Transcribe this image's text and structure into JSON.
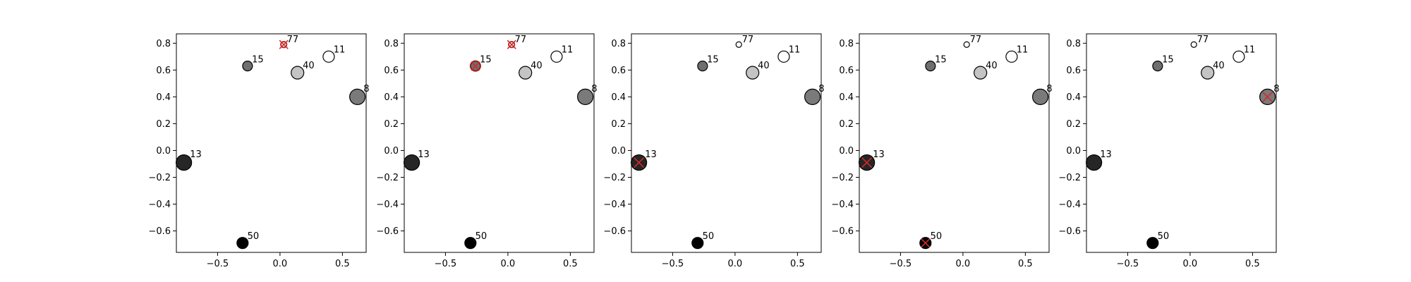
{
  "chart_data": [
    {
      "type": "scatter",
      "xlim": [
        -0.83,
        0.69
      ],
      "ylim": [
        -0.76,
        0.87
      ],
      "x_ticks": [
        -0.5,
        0.0,
        0.5
      ],
      "x_tick_labels": [
        "−0.5",
        "0.0",
        "0.5"
      ],
      "y_ticks": [
        -0.6,
        -0.4,
        -0.2,
        0.0,
        0.2,
        0.4,
        0.6,
        0.8
      ],
      "y_tick_labels": [
        "−0.6",
        "−0.4",
        "−0.2",
        "0.0",
        "0.2",
        "0.4",
        "0.6",
        "0.8"
      ],
      "grid": false,
      "points": [
        {
          "label": "77",
          "x": 0.03,
          "y": 0.79,
          "size": 4,
          "color": "#ffffff",
          "marked": true
        },
        {
          "label": "11",
          "x": 0.39,
          "y": 0.7,
          "size": 8,
          "color": "#ffffff",
          "marked": false
        },
        {
          "label": "15",
          "x": -0.26,
          "y": 0.63,
          "size": 7,
          "color": "#6f6f6f",
          "marked": false
        },
        {
          "label": "40",
          "x": 0.14,
          "y": 0.58,
          "size": 9,
          "color": "#c4c4c4",
          "marked": false
        },
        {
          "label": "8",
          "x": 0.62,
          "y": 0.4,
          "size": 11,
          "color": "#7a7a7a",
          "marked": false
        },
        {
          "label": "13",
          "x": -0.77,
          "y": -0.09,
          "size": 11,
          "color": "#262626",
          "marked": false
        },
        {
          "label": "50",
          "x": -0.3,
          "y": -0.69,
          "size": 8,
          "color": "#000000",
          "marked": false
        }
      ]
    },
    {
      "type": "scatter",
      "xlim": [
        -0.83,
        0.69
      ],
      "ylim": [
        -0.76,
        0.87
      ],
      "x_ticks": [
        -0.5,
        0.0,
        0.5
      ],
      "x_tick_labels": [
        "−0.5",
        "0.0",
        "0.5"
      ],
      "y_ticks": [
        -0.6,
        -0.4,
        -0.2,
        0.0,
        0.2,
        0.4,
        0.6,
        0.8
      ],
      "y_tick_labels": [
        "−0.6",
        "−0.4",
        "−0.2",
        "0.0",
        "0.2",
        "0.4",
        "0.6",
        "0.8"
      ],
      "grid": false,
      "points": [
        {
          "label": "77",
          "x": 0.03,
          "y": 0.79,
          "size": 4,
          "color": "#ffffff",
          "marked": true
        },
        {
          "label": "11",
          "x": 0.39,
          "y": 0.7,
          "size": 8,
          "color": "#ffffff",
          "marked": false
        },
        {
          "label": "15",
          "x": -0.26,
          "y": 0.63,
          "size": 7,
          "color": "#6f6f6f",
          "marked": true
        },
        {
          "label": "40",
          "x": 0.14,
          "y": 0.58,
          "size": 9,
          "color": "#c4c4c4",
          "marked": false
        },
        {
          "label": "8",
          "x": 0.62,
          "y": 0.4,
          "size": 11,
          "color": "#7a7a7a",
          "marked": false
        },
        {
          "label": "13",
          "x": -0.77,
          "y": -0.09,
          "size": 11,
          "color": "#262626",
          "marked": false
        },
        {
          "label": "50",
          "x": -0.3,
          "y": -0.69,
          "size": 8,
          "color": "#000000",
          "marked": false
        }
      ]
    },
    {
      "type": "scatter",
      "xlim": [
        -0.83,
        0.69
      ],
      "ylim": [
        -0.76,
        0.87
      ],
      "x_ticks": [
        -0.5,
        0.0,
        0.5
      ],
      "x_tick_labels": [
        "−0.5",
        "0.0",
        "0.5"
      ],
      "y_ticks": [
        -0.6,
        -0.4,
        -0.2,
        0.0,
        0.2,
        0.4,
        0.6,
        0.8
      ],
      "y_tick_labels": [
        "−0.6",
        "−0.4",
        "−0.2",
        "0.0",
        "0.2",
        "0.4",
        "0.6",
        "0.8"
      ],
      "grid": false,
      "points": [
        {
          "label": "77",
          "x": 0.03,
          "y": 0.79,
          "size": 4,
          "color": "#ffffff",
          "marked": false
        },
        {
          "label": "11",
          "x": 0.39,
          "y": 0.7,
          "size": 8,
          "color": "#ffffff",
          "marked": false
        },
        {
          "label": "15",
          "x": -0.26,
          "y": 0.63,
          "size": 7,
          "color": "#6f6f6f",
          "marked": false
        },
        {
          "label": "40",
          "x": 0.14,
          "y": 0.58,
          "size": 9,
          "color": "#c4c4c4",
          "marked": false
        },
        {
          "label": "8",
          "x": 0.62,
          "y": 0.4,
          "size": 11,
          "color": "#7a7a7a",
          "marked": false
        },
        {
          "label": "13",
          "x": -0.77,
          "y": -0.09,
          "size": 11,
          "color": "#262626",
          "marked": true
        },
        {
          "label": "50",
          "x": -0.3,
          "y": -0.69,
          "size": 8,
          "color": "#000000",
          "marked": false
        }
      ]
    },
    {
      "type": "scatter",
      "xlim": [
        -0.83,
        0.69
      ],
      "ylim": [
        -0.76,
        0.87
      ],
      "x_ticks": [
        -0.5,
        0.0,
        0.5
      ],
      "x_tick_labels": [
        "−0.5",
        "0.0",
        "0.5"
      ],
      "y_ticks": [
        -0.6,
        -0.4,
        -0.2,
        0.0,
        0.2,
        0.4,
        0.6,
        0.8
      ],
      "y_tick_labels": [
        "−0.6",
        "−0.4",
        "−0.2",
        "0.0",
        "0.2",
        "0.4",
        "0.6",
        "0.8"
      ],
      "grid": false,
      "points": [
        {
          "label": "77",
          "x": 0.03,
          "y": 0.79,
          "size": 4,
          "color": "#ffffff",
          "marked": false
        },
        {
          "label": "11",
          "x": 0.39,
          "y": 0.7,
          "size": 8,
          "color": "#ffffff",
          "marked": false
        },
        {
          "label": "15",
          "x": -0.26,
          "y": 0.63,
          "size": 7,
          "color": "#6f6f6f",
          "marked": false
        },
        {
          "label": "40",
          "x": 0.14,
          "y": 0.58,
          "size": 9,
          "color": "#c4c4c4",
          "marked": false
        },
        {
          "label": "8",
          "x": 0.62,
          "y": 0.4,
          "size": 11,
          "color": "#7a7a7a",
          "marked": false
        },
        {
          "label": "13",
          "x": -0.77,
          "y": -0.09,
          "size": 11,
          "color": "#262626",
          "marked": true
        },
        {
          "label": "50",
          "x": -0.3,
          "y": -0.69,
          "size": 8,
          "color": "#000000",
          "marked": true
        }
      ]
    },
    {
      "type": "scatter",
      "xlim": [
        -0.83,
        0.69
      ],
      "ylim": [
        -0.76,
        0.87
      ],
      "x_ticks": [
        -0.5,
        0.0,
        0.5
      ],
      "x_tick_labels": [
        "−0.5",
        "0.0",
        "0.5"
      ],
      "y_ticks": [
        -0.6,
        -0.4,
        -0.2,
        0.0,
        0.2,
        0.4,
        0.6,
        0.8
      ],
      "y_tick_labels": [
        "−0.6",
        "−0.4",
        "−0.2",
        "0.0",
        "0.2",
        "0.4",
        "0.6",
        "0.8"
      ],
      "grid": false,
      "points": [
        {
          "label": "77",
          "x": 0.03,
          "y": 0.79,
          "size": 4,
          "color": "#ffffff",
          "marked": false
        },
        {
          "label": "11",
          "x": 0.39,
          "y": 0.7,
          "size": 8,
          "color": "#ffffff",
          "marked": false
        },
        {
          "label": "15",
          "x": -0.26,
          "y": 0.63,
          "size": 7,
          "color": "#6f6f6f",
          "marked": false
        },
        {
          "label": "40",
          "x": 0.14,
          "y": 0.58,
          "size": 9,
          "color": "#c4c4c4",
          "marked": false
        },
        {
          "label": "8",
          "x": 0.62,
          "y": 0.4,
          "size": 11,
          "color": "#7a7a7a",
          "marked": true
        },
        {
          "label": "13",
          "x": -0.77,
          "y": -0.09,
          "size": 11,
          "color": "#262626",
          "marked": false
        },
        {
          "label": "50",
          "x": -0.3,
          "y": -0.69,
          "size": 8,
          "color": "#000000",
          "marked": false
        }
      ]
    }
  ],
  "marker_color": "#d62728"
}
